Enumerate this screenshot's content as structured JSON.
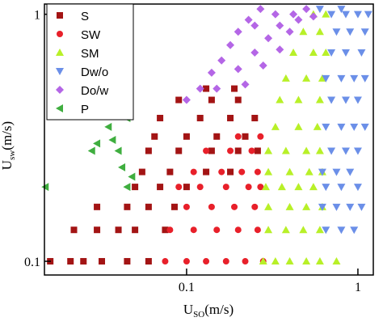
{
  "chart_data": {
    "type": "scatter",
    "log_x": true,
    "log_y": true,
    "xlabel": {
      "text": "U",
      "sub": "SO",
      "unit": "(m/s)"
    },
    "ylabel": {
      "text": "U",
      "sub": "sw",
      "unit": "(m/s)"
    },
    "xlim": [
      0.0148,
      1.23
    ],
    "ylim": [
      0.088,
      1.1
    ],
    "xticks": [
      0.1,
      1
    ],
    "yticks": [
      0.1,
      1
    ],
    "legend": "top-left",
    "series": [
      {
        "name": "S",
        "color": "#a31414",
        "marker": "square",
        "x": [
          0.016,
          0.021,
          0.025,
          0.032,
          0.045,
          0.06,
          0.022,
          0.03,
          0.04,
          0.05,
          0.075,
          0.03,
          0.045,
          0.06,
          0.085,
          0.05,
          0.07,
          0.1,
          0.055,
          0.08,
          0.13,
          0.18,
          0.06,
          0.09,
          0.14,
          0.2,
          0.26,
          0.065,
          0.1,
          0.15,
          0.22,
          0.07,
          0.12,
          0.18,
          0.25,
          0.09,
          0.14,
          0.2,
          0.13,
          0.19
        ],
        "values": [
          0.1,
          0.1,
          0.1,
          0.1,
          0.1,
          0.1,
          0.134,
          0.134,
          0.134,
          0.134,
          0.134,
          0.166,
          0.166,
          0.166,
          0.166,
          0.2,
          0.2,
          0.2,
          0.23,
          0.23,
          0.23,
          0.23,
          0.28,
          0.28,
          0.28,
          0.28,
          0.28,
          0.32,
          0.32,
          0.32,
          0.32,
          0.38,
          0.38,
          0.38,
          0.38,
          0.45,
          0.45,
          0.45,
          0.5,
          0.5
        ]
      },
      {
        "name": "SW",
        "color": "#e8202a",
        "marker": "circle",
        "x": [
          0.075,
          0.1,
          0.13,
          0.17,
          0.22,
          0.28,
          0.08,
          0.11,
          0.15,
          0.2,
          0.26,
          0.1,
          0.14,
          0.19,
          0.25,
          0.09,
          0.12,
          0.17,
          0.23,
          0.27,
          0.11,
          0.16,
          0.21,
          0.26,
          0.13,
          0.18,
          0.24,
          0.2,
          0.27
        ],
        "values": [
          0.1,
          0.1,
          0.1,
          0.1,
          0.1,
          0.1,
          0.134,
          0.134,
          0.134,
          0.134,
          0.134,
          0.166,
          0.166,
          0.166,
          0.166,
          0.2,
          0.2,
          0.2,
          0.2,
          0.2,
          0.23,
          0.23,
          0.23,
          0.23,
          0.28,
          0.28,
          0.28,
          0.32,
          0.32
        ]
      },
      {
        "name": "SM",
        "color": "#b8f028",
        "marker": "triangle-up",
        "x": [
          0.28,
          0.33,
          0.4,
          0.5,
          0.6,
          0.75,
          0.3,
          0.38,
          0.48,
          0.6,
          0.3,
          0.4,
          0.5,
          0.62,
          0.29,
          0.36,
          0.45,
          0.55,
          0.3,
          0.4,
          0.52,
          0.62,
          0.3,
          0.38,
          0.5,
          0.6,
          0.33,
          0.45,
          0.58,
          0.35,
          0.45,
          0.6,
          0.38,
          0.5,
          0.62,
          0.42,
          0.55,
          0.65,
          0.48,
          0.6,
          0.55,
          0.65
        ],
        "values": [
          0.1,
          0.1,
          0.1,
          0.1,
          0.1,
          0.1,
          0.134,
          0.134,
          0.134,
          0.134,
          0.166,
          0.166,
          0.166,
          0.166,
          0.2,
          0.2,
          0.2,
          0.2,
          0.23,
          0.23,
          0.23,
          0.23,
          0.28,
          0.28,
          0.28,
          0.28,
          0.35,
          0.35,
          0.35,
          0.45,
          0.45,
          0.45,
          0.55,
          0.55,
          0.55,
          0.7,
          0.7,
          0.7,
          0.85,
          0.85,
          1.0,
          1.0
        ]
      },
      {
        "name": "Dw/o",
        "color": "#6b8fe8",
        "marker": "triangle-down",
        "x": [
          0.65,
          0.8,
          0.95,
          0.62,
          0.75,
          0.9,
          1.05,
          0.65,
          0.8,
          1.0,
          0.62,
          0.75,
          0.9,
          0.7,
          0.85,
          1.0,
          0.65,
          0.8,
          0.95,
          1.1,
          0.7,
          0.85,
          1.0,
          0.65,
          0.8,
          0.95,
          1.1,
          0.7,
          0.85,
          1.05,
          0.75,
          0.9,
          1.1,
          0.7,
          0.85,
          1.0,
          1.15,
          0.6,
          0.8
        ],
        "values": [
          0.134,
          0.134,
          0.134,
          0.166,
          0.166,
          0.166,
          0.166,
          0.2,
          0.2,
          0.2,
          0.23,
          0.23,
          0.23,
          0.28,
          0.28,
          0.28,
          0.35,
          0.35,
          0.35,
          0.35,
          0.45,
          0.45,
          0.45,
          0.55,
          0.55,
          0.55,
          0.55,
          0.7,
          0.7,
          0.7,
          0.85,
          0.85,
          0.85,
          1.0,
          1.0,
          1.0,
          1.0,
          1.05,
          1.05
        ]
      },
      {
        "name": "Do/w",
        "color": "#b466e6",
        "marker": "diamond",
        "x": [
          0.1,
          0.12,
          0.14,
          0.16,
          0.18,
          0.2,
          0.23,
          0.27,
          0.15,
          0.2,
          0.25,
          0.3,
          0.35,
          0.42,
          0.5,
          0.22,
          0.28,
          0.35,
          0.4,
          0.33,
          0.45,
          0.55,
          0.25
        ],
        "values": [
          0.45,
          0.5,
          0.58,
          0.65,
          0.75,
          0.85,
          0.95,
          1.05,
          0.5,
          0.6,
          0.7,
          0.8,
          0.9,
          1.0,
          1.05,
          0.52,
          0.62,
          0.72,
          0.85,
          1.0,
          0.95,
          0.98,
          0.9
        ]
      },
      {
        "name": "P",
        "color": "#3fae3f",
        "marker": "triangle-left",
        "x": [
          0.015,
          0.035,
          0.037,
          0.04,
          0.045,
          0.042,
          0.045,
          0.048,
          0.03,
          0.028
        ],
        "values": [
          0.2,
          0.35,
          0.31,
          0.28,
          0.38,
          0.24,
          0.2,
          0.22,
          0.3,
          0.28
        ]
      }
    ]
  }
}
